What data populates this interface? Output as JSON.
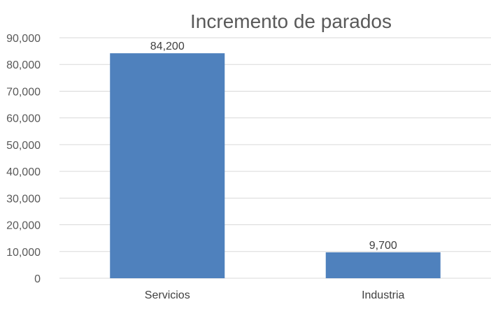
{
  "chart_data": {
    "type": "bar",
    "title": "Incremento de parados",
    "categories": [
      "Servicios",
      "Industria"
    ],
    "values": [
      84200,
      9700
    ],
    "data_labels": [
      "84,200",
      "9,700"
    ],
    "ylim": [
      0,
      90000
    ],
    "yticks": [
      0,
      10000,
      20000,
      30000,
      40000,
      50000,
      60000,
      70000,
      80000,
      90000
    ],
    "ytick_labels": [
      "0",
      "10,000",
      "20,000",
      "30,000",
      "40,000",
      "50,000",
      "60,000",
      "70,000",
      "80,000",
      "90,000"
    ],
    "xlabel": "",
    "ylabel": "",
    "grid": true,
    "legend": "none",
    "bar_color": "#4f81bd"
  }
}
